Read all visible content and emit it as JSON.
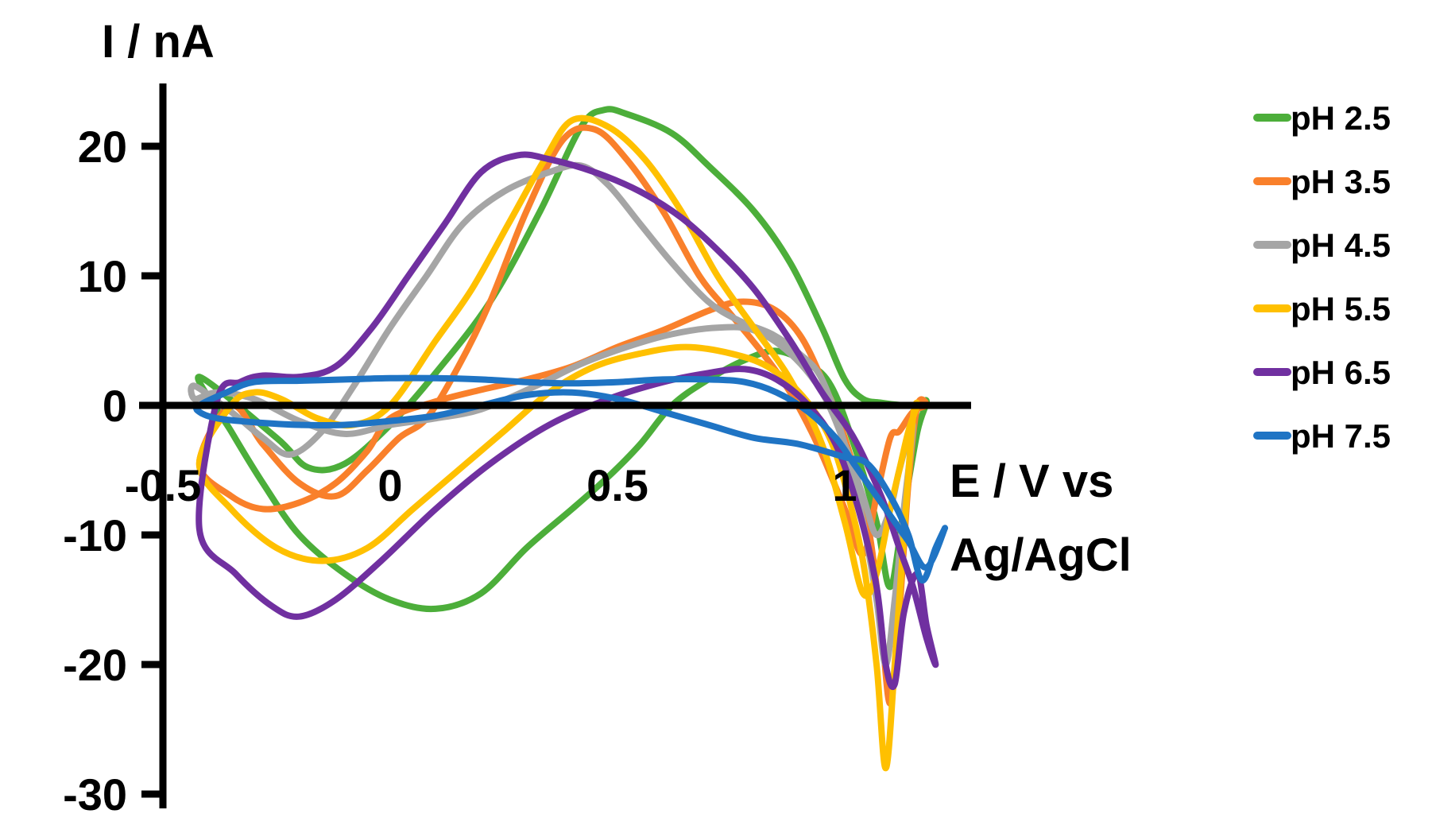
{
  "chart_data": {
    "type": "line",
    "title": "",
    "xlabel_line1": "E / V vs",
    "xlabel_line2": "Ag/AgCl",
    "ylabel": "I / nA",
    "xlim": [
      -0.5,
      1.3
    ],
    "ylim": [
      -30,
      25
    ],
    "x_ticks": [
      {
        "value": -0.5,
        "label": "-0.5"
      },
      {
        "value": 0,
        "label": "0"
      },
      {
        "value": 0.5,
        "label": "0.5"
      },
      {
        "value": 1,
        "label": "1"
      }
    ],
    "y_ticks": [
      {
        "value": 20,
        "label": "20"
      },
      {
        "value": 10,
        "label": "10"
      },
      {
        "value": 0,
        "label": "0"
      },
      {
        "value": -10,
        "label": "-10"
      },
      {
        "value": -20,
        "label": "-20"
      },
      {
        "value": -30,
        "label": "-30"
      }
    ],
    "grid": false,
    "legend_position": "right",
    "series": [
      {
        "name": "pH 2.5",
        "color": "#4cae3a",
        "points": [
          [
            -0.42,
            2.2
          ],
          [
            -0.35,
            -2
          ],
          [
            -0.28,
            -6
          ],
          [
            -0.2,
            -10
          ],
          [
            -0.1,
            -13
          ],
          [
            0,
            -15
          ],
          [
            0.1,
            -15.7
          ],
          [
            0.2,
            -14.5
          ],
          [
            0.3,
            -11
          ],
          [
            0.4,
            -8
          ],
          [
            0.48,
            -5.5
          ],
          [
            0.55,
            -3
          ],
          [
            0.62,
            0
          ],
          [
            0.7,
            2
          ],
          [
            0.78,
            3.5
          ],
          [
            0.85,
            4.2
          ],
          [
            0.92,
            3.2
          ],
          [
            0.97,
            1.5
          ],
          [
            1.02,
            -3
          ],
          [
            1.07,
            -9
          ],
          [
            1.1,
            -14
          ],
          [
            1.13,
            -8
          ],
          [
            1.16,
            -2
          ],
          [
            1.18,
            0.3
          ],
          [
            1.16,
            0
          ],
          [
            1.13,
            0
          ],
          [
            1.08,
            0.2
          ],
          [
            1.04,
            0.5
          ],
          [
            1.0,
            2
          ],
          [
            0.95,
            6
          ],
          [
            0.88,
            11
          ],
          [
            0.8,
            15
          ],
          [
            0.7,
            18.5
          ],
          [
            0.62,
            21
          ],
          [
            0.52,
            22.5
          ],
          [
            0.47,
            22.8
          ],
          [
            0.42,
            21.5
          ],
          [
            0.33,
            15
          ],
          [
            0.22,
            8
          ],
          [
            0.1,
            2.5
          ],
          [
            0,
            -1.5
          ],
          [
            -0.1,
            -4.5
          ],
          [
            -0.18,
            -4.8
          ],
          [
            -0.25,
            -2.5
          ]
        ]
      },
      {
        "name": "pH 3.5",
        "color": "#f9802b",
        "points": [
          [
            -0.42,
            -4.5
          ],
          [
            -0.35,
            -7
          ],
          [
            -0.28,
            -8
          ],
          [
            -0.2,
            -7.5
          ],
          [
            -0.12,
            -6
          ],
          [
            -0.05,
            -3.5
          ],
          [
            0,
            -1
          ],
          [
            0.1,
            0.3
          ],
          [
            0.2,
            1.2
          ],
          [
            0.3,
            2
          ],
          [
            0.4,
            3
          ],
          [
            0.5,
            4.5
          ],
          [
            0.6,
            5.8
          ],
          [
            0.7,
            7.3
          ],
          [
            0.77,
            8
          ],
          [
            0.84,
            7.5
          ],
          [
            0.9,
            5.5
          ],
          [
            0.95,
            2
          ],
          [
            1.0,
            -2.5
          ],
          [
            1.05,
            -9
          ],
          [
            1.08,
            -17
          ],
          [
            1.1,
            -23
          ],
          [
            1.12,
            -16
          ],
          [
            1.14,
            -6
          ],
          [
            1.16,
            0
          ],
          [
            1.18,
            0
          ],
          [
            1.15,
            -0.5
          ],
          [
            1.12,
            -2
          ],
          [
            1.1,
            -2.5
          ],
          [
            1.07,
            -7
          ],
          [
            1.04,
            -11.5
          ],
          [
            1.0,
            -8
          ],
          [
            0.94,
            -3
          ],
          [
            0.88,
            1
          ],
          [
            0.82,
            4
          ],
          [
            0.75,
            7
          ],
          [
            0.68,
            10
          ],
          [
            0.6,
            15
          ],
          [
            0.52,
            19
          ],
          [
            0.45,
            21.3
          ],
          [
            0.38,
            20.5
          ],
          [
            0.3,
            15
          ],
          [
            0.22,
            8
          ],
          [
            0.15,
            3
          ],
          [
            0.08,
            -1
          ],
          [
            0.02,
            -2.5
          ],
          [
            -0.05,
            -5
          ],
          [
            -0.12,
            -7
          ],
          [
            -0.2,
            -6
          ],
          [
            -0.28,
            -3
          ],
          [
            -0.35,
            0
          ]
        ]
      },
      {
        "name": "pH 4.5",
        "color": "#a5a5a5",
        "points": [
          [
            -0.43,
            1.5
          ],
          [
            -0.35,
            -0.5
          ],
          [
            -0.28,
            -2.5
          ],
          [
            -0.22,
            -3.8
          ],
          [
            -0.15,
            -2
          ],
          [
            -0.08,
            1.5
          ],
          [
            0,
            6
          ],
          [
            0.08,
            10
          ],
          [
            0.16,
            14
          ],
          [
            0.25,
            16.5
          ],
          [
            0.35,
            18
          ],
          [
            0.42,
            18.5
          ],
          [
            0.48,
            17
          ],
          [
            0.55,
            14
          ],
          [
            0.62,
            11
          ],
          [
            0.7,
            8
          ],
          [
            0.77,
            6.5
          ],
          [
            0.84,
            5.5
          ],
          [
            0.9,
            4
          ],
          [
            0.95,
            2
          ],
          [
            1.0,
            -3
          ],
          [
            1.04,
            -9
          ],
          [
            1.07,
            -15
          ],
          [
            1.09,
            -20
          ],
          [
            1.11,
            -15
          ],
          [
            1.13,
            -8
          ],
          [
            1.15,
            -1.5
          ],
          [
            1.12,
            -5
          ],
          [
            1.1,
            -8
          ],
          [
            1.07,
            -10
          ],
          [
            1.04,
            -7
          ],
          [
            1.0,
            -3
          ],
          [
            0.95,
            1
          ],
          [
            0.88,
            4
          ],
          [
            0.8,
            5.8
          ],
          [
            0.72,
            6
          ],
          [
            0.62,
            5.5
          ],
          [
            0.52,
            4.5
          ],
          [
            0.42,
            3.2
          ],
          [
            0.32,
            1.5
          ],
          [
            0.2,
            -0.3
          ],
          [
            0.1,
            -1
          ],
          [
            0,
            -1.5
          ],
          [
            -0.1,
            -2.2
          ],
          [
            -0.2,
            -1.2
          ],
          [
            -0.3,
            0.5
          ],
          [
            -0.38,
            1
          ],
          [
            -0.43,
            0.5
          ]
        ]
      },
      {
        "name": "pH 5.5",
        "color": "#ffc000",
        "points": [
          [
            -0.42,
            -4.5
          ],
          [
            -0.35,
            -8
          ],
          [
            -0.25,
            -11
          ],
          [
            -0.15,
            -12
          ],
          [
            -0.05,
            -11
          ],
          [
            0.05,
            -8
          ],
          [
            0.15,
            -5
          ],
          [
            0.25,
            -2
          ],
          [
            0.35,
            1
          ],
          [
            0.45,
            3
          ],
          [
            0.55,
            4
          ],
          [
            0.65,
            4.5
          ],
          [
            0.75,
            4
          ],
          [
            0.83,
            3
          ],
          [
            0.9,
            1
          ],
          [
            0.96,
            -2
          ],
          [
            1.0,
            -6
          ],
          [
            1.04,
            -12
          ],
          [
            1.07,
            -20
          ],
          [
            1.09,
            -28
          ],
          [
            1.11,
            -20
          ],
          [
            1.13,
            -10
          ],
          [
            1.15,
            -1
          ],
          [
            1.16,
            0
          ],
          [
            1.14,
            -2
          ],
          [
            1.12,
            -5
          ],
          [
            1.1,
            -8
          ],
          [
            1.07,
            -13
          ],
          [
            1.04,
            -14.5
          ],
          [
            1.0,
            -9
          ],
          [
            0.95,
            -3
          ],
          [
            0.88,
            2
          ],
          [
            0.8,
            6
          ],
          [
            0.72,
            10
          ],
          [
            0.64,
            15
          ],
          [
            0.56,
            19
          ],
          [
            0.48,
            21.5
          ],
          [
            0.4,
            22
          ],
          [
            0.34,
            19
          ],
          [
            0.26,
            14
          ],
          [
            0.18,
            9
          ],
          [
            0.1,
            5
          ],
          [
            0,
            0
          ],
          [
            -0.08,
            -1.5
          ],
          [
            -0.16,
            -1
          ],
          [
            -0.24,
            0.5
          ],
          [
            -0.3,
            1
          ],
          [
            -0.35,
            0
          ]
        ]
      },
      {
        "name": "pH 6.5",
        "color": "#7030a0",
        "points": [
          [
            -0.42,
            -9.5
          ],
          [
            -0.34,
            -13
          ],
          [
            -0.26,
            -15.5
          ],
          [
            -0.2,
            -16.3
          ],
          [
            -0.12,
            -15
          ],
          [
            -0.02,
            -12
          ],
          [
            0.1,
            -8
          ],
          [
            0.22,
            -4.5
          ],
          [
            0.35,
            -1.5
          ],
          [
            0.48,
            0.5
          ],
          [
            0.6,
            1.8
          ],
          [
            0.7,
            2.5
          ],
          [
            0.78,
            2.8
          ],
          [
            0.85,
            2
          ],
          [
            0.92,
            0
          ],
          [
            0.98,
            -3
          ],
          [
            1.03,
            -8
          ],
          [
            1.07,
            -14
          ],
          [
            1.09,
            -20
          ],
          [
            1.11,
            -21.5
          ],
          [
            1.13,
            -16
          ],
          [
            1.16,
            -13
          ],
          [
            1.18,
            -17
          ],
          [
            1.2,
            -20
          ],
          [
            1.18,
            -18
          ],
          [
            1.15,
            -14
          ],
          [
            1.12,
            -11
          ],
          [
            1.08,
            -7
          ],
          [
            1.02,
            -2.5
          ],
          [
            0.95,
            1
          ],
          [
            0.88,
            5
          ],
          [
            0.8,
            9
          ],
          [
            0.72,
            12
          ],
          [
            0.64,
            14.5
          ],
          [
            0.55,
            16.5
          ],
          [
            0.45,
            18
          ],
          [
            0.35,
            19
          ],
          [
            0.28,
            19.3
          ],
          [
            0.2,
            18
          ],
          [
            0.12,
            14
          ],
          [
            0.04,
            10
          ],
          [
            -0.04,
            6
          ],
          [
            -0.12,
            3
          ],
          [
            -0.2,
            2.2
          ],
          [
            -0.28,
            2.3
          ],
          [
            -0.33,
            1.8
          ],
          [
            -0.38,
            0.5
          ]
        ]
      },
      {
        "name": "pH 7.5",
        "color": "#1f74c4",
        "points": [
          [
            -0.42,
            0
          ],
          [
            -0.36,
            1
          ],
          [
            -0.3,
            1.8
          ],
          [
            -0.2,
            1.9
          ],
          [
            -0.1,
            2
          ],
          [
            0,
            2.1
          ],
          [
            0.1,
            2.1
          ],
          [
            0.2,
            2
          ],
          [
            0.3,
            1.8
          ],
          [
            0.4,
            1.7
          ],
          [
            0.5,
            1.8
          ],
          [
            0.6,
            2
          ],
          [
            0.7,
            2
          ],
          [
            0.78,
            1.8
          ],
          [
            0.85,
            1
          ],
          [
            0.92,
            -0.5
          ],
          [
            0.98,
            -2.5
          ],
          [
            1.02,
            -4.5
          ],
          [
            1.06,
            -6.5
          ],
          [
            1.1,
            -8.5
          ],
          [
            1.14,
            -10.5
          ],
          [
            1.18,
            -12.5
          ],
          [
            1.22,
            -9.5
          ],
          [
            1.2,
            -11
          ],
          [
            1.17,
            -13.5
          ],
          [
            1.14,
            -10
          ],
          [
            1.1,
            -7
          ],
          [
            1.05,
            -4.5
          ],
          [
            1.0,
            -4
          ],
          [
            0.9,
            -3
          ],
          [
            0.8,
            -2.5
          ],
          [
            0.7,
            -1.5
          ],
          [
            0.6,
            -0.5
          ],
          [
            0.5,
            0.5
          ],
          [
            0.4,
            1
          ],
          [
            0.3,
            0.8
          ],
          [
            0.2,
            0
          ],
          [
            0.1,
            -0.8
          ],
          [
            0,
            -1.2
          ],
          [
            -0.1,
            -1.5
          ],
          [
            -0.2,
            -1.5
          ],
          [
            -0.3,
            -1.3
          ],
          [
            -0.38,
            -1
          ],
          [
            -0.42,
            -0.5
          ]
        ]
      }
    ]
  }
}
